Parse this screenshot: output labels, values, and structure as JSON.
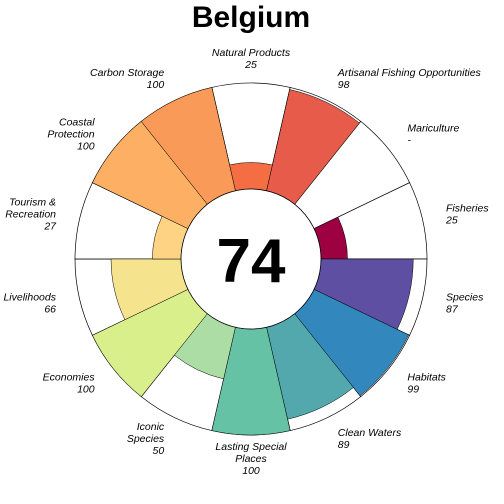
{
  "chart_data": {
    "type": "flower",
    "title": "Belgium",
    "center_score": "74",
    "max_value": 100,
    "petals": [
      {
        "name": "Natural Products",
        "label_lines": [
          "Natural Products"
        ],
        "score": "25",
        "value": 25,
        "color": "#f46d43"
      },
      {
        "name": "Artisanal Fishing Opportunities",
        "label_lines": [
          "Artisanal Fishing Opportunities"
        ],
        "score": "98",
        "value": 98,
        "color": "#e75b4b"
      },
      {
        "name": "Mariculture",
        "label_lines": [
          "Mariculture"
        ],
        "score": "-",
        "value": 0,
        "color": "#d53e4f"
      },
      {
        "name": "Fisheries",
        "label_lines": [
          "Fisheries"
        ],
        "score": "25",
        "value": 25,
        "color": "#9e0142"
      },
      {
        "name": "Species",
        "label_lines": [
          "Species"
        ],
        "score": "87",
        "value": 87,
        "color": "#5e4fa2"
      },
      {
        "name": "Habitats",
        "label_lines": [
          "Habitats"
        ],
        "score": "99",
        "value": 99,
        "color": "#3288bd"
      },
      {
        "name": "Clean Waters",
        "label_lines": [
          "Clean Waters"
        ],
        "score": "89",
        "value": 89,
        "color": "#52a8ac"
      },
      {
        "name": "Lasting Special Places",
        "label_lines": [
          "Lasting Special",
          "Places"
        ],
        "score": "100",
        "value": 100,
        "color": "#66c2a5"
      },
      {
        "name": "Iconic Species",
        "label_lines": [
          "Iconic",
          "Species"
        ],
        "score": "50",
        "value": 50,
        "color": "#abdda4"
      },
      {
        "name": "Economies",
        "label_lines": [
          "Economies"
        ],
        "score": "100",
        "value": 100,
        "color": "#d9ef8b"
      },
      {
        "name": "Livelihoods",
        "label_lines": [
          "Livelihoods"
        ],
        "score": "66",
        "value": 66,
        "color": "#f6e38d"
      },
      {
        "name": "Tourism & Recreation",
        "label_lines": [
          "Tourism &",
          "Recreation"
        ],
        "score": "27",
        "value": 27,
        "color": "#fed384"
      },
      {
        "name": "Coastal Protection",
        "label_lines": [
          "Coastal",
          "Protection"
        ],
        "score": "100",
        "value": 100,
        "color": "#fdb063"
      },
      {
        "name": "Carbon Storage",
        "label_lines": [
          "Carbon Storage"
        ],
        "score": "100",
        "value": 100,
        "color": "#f99a58"
      }
    ]
  }
}
